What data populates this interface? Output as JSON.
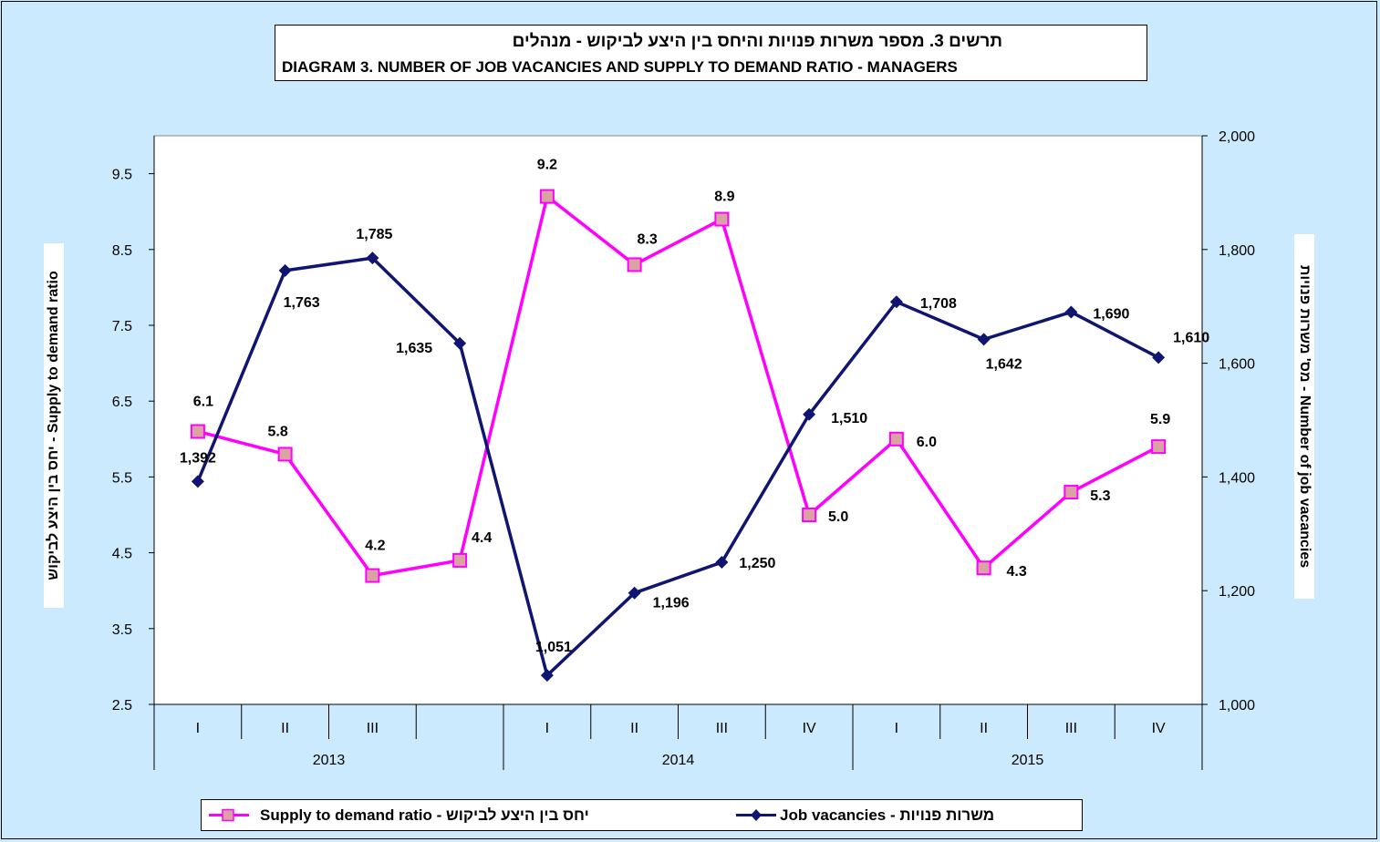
{
  "title_he": "תרשים 3. מספר משרות פנויות והיחס בין היצע לביקוש - מנהלים",
  "title_en": "DIAGRAM 3. NUMBER OF JOB VACANCIES AND SUPPLY TO DEMAND RATIO - MANAGERS",
  "chart_data": {
    "type": "line",
    "title": "DIAGRAM 3. NUMBER OF JOB VACANCIES AND SUPPLY TO DEMAND RATIO - MANAGERS",
    "quarters": [
      "I",
      "II",
      "III",
      "",
      "I",
      "II",
      "III",
      "IV",
      "I",
      "II",
      "III",
      "IV"
    ],
    "years": [
      {
        "label": "2013",
        "span": 4
      },
      {
        "label": "2014",
        "span": 4
      },
      {
        "label": "2015",
        "span": 4
      }
    ],
    "left_axis": {
      "label": "יחס בין היצע לביקוש - Supply to demand ratio",
      "range": [
        2.5,
        10
      ],
      "ticks": [
        2.5,
        3.5,
        4.5,
        5.5,
        6.5,
        7.5,
        8.5,
        9.5
      ],
      "tick_labels": [
        "2.5",
        "3.5",
        "4.5",
        "5.5",
        "6.5",
        "7.5",
        "8.5",
        "9.5"
      ]
    },
    "right_axis": {
      "label": "מס' משרות פנויות - Number of job vacancies",
      "range": [
        1000,
        2000
      ],
      "ticks": [
        1000,
        1200,
        1400,
        1600,
        1800,
        2000
      ],
      "tick_labels": [
        "1,000",
        "1,200",
        "1,400",
        "1,600",
        "1,800",
        "2,000"
      ]
    },
    "series": [
      {
        "name": "Supply to demand ratio - יחס בין היצע לביקוש",
        "axis": "left",
        "color": "#ff00ff",
        "marker": "square",
        "marker_color": "#d9a3a3",
        "values": [
          6.1,
          5.8,
          4.2,
          4.4,
          9.2,
          8.3,
          8.9,
          5.0,
          6.0,
          4.3,
          5.3,
          5.9
        ],
        "labels": [
          "6.1",
          "5.8",
          "4.2",
          "4.4",
          "9.2",
          "8.3",
          "8.9",
          "5.0",
          "6.0",
          "4.3",
          "5.3",
          "5.9"
        ]
      },
      {
        "name": "Job vacancies - משרות פנויות",
        "axis": "right",
        "color": "#0f1570",
        "marker": "diamond",
        "values": [
          1392,
          1763,
          1785,
          1635,
          1051,
          1196,
          1250,
          1510,
          1708,
          1642,
          1690,
          1610
        ],
        "labels": [
          "1,392",
          "1,763",
          "1,785",
          "1,635",
          "1,051",
          "1,196",
          "1,250",
          "1,510",
          "1,708",
          "1,642",
          "1,690",
          "1,610"
        ]
      }
    ],
    "grid": false,
    "legend_position": "bottom"
  },
  "legend": {
    "ratio_label": "Supply to demand ratio - יחס בין היצע לביקוש",
    "vacancies_label": "Job vacancies - משרות פנויות"
  }
}
